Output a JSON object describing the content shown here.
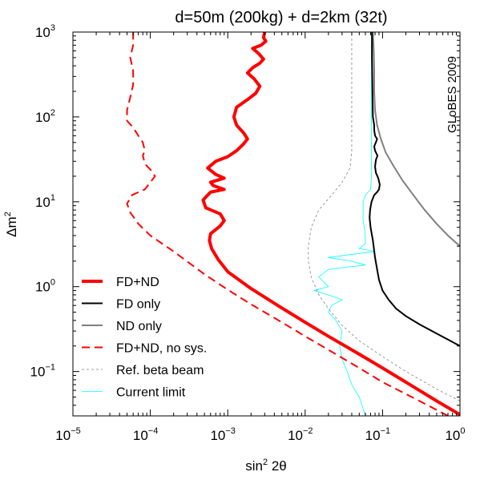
{
  "chart_data": {
    "type": "line",
    "title": "d=50m (200kg) + d=2km (32t)",
    "watermark": "GLoBES 2009",
    "xlabel": "sin² 2θ",
    "ylabel": "Δm²",
    "xscale": "log",
    "yscale": "log",
    "xlim": [
      1e-05,
      1
    ],
    "ylim": [
      0.03,
      1000
    ],
    "grid": false,
    "legend_position": "bottom-left",
    "x_ticks": [
      {
        "base": "10",
        "exp": "−5"
      },
      {
        "base": "10",
        "exp": "−4"
      },
      {
        "base": "10",
        "exp": "−3"
      },
      {
        "base": "10",
        "exp": "−2"
      },
      {
        "base": "10",
        "exp": "−1"
      },
      {
        "base": "10",
        "exp": "0"
      }
    ],
    "y_ticks": [
      {
        "base": "10",
        "exp": "−1"
      },
      {
        "base": "10",
        "exp": "0"
      },
      {
        "base": "10",
        "exp": "1"
      },
      {
        "base": "10",
        "exp": "2"
      },
      {
        "base": "10",
        "exp": "3"
      }
    ],
    "series": [
      {
        "name": "FD+ND",
        "color": "#ff0000",
        "style": "solid",
        "weight": "thick",
        "points": [
          [
            1,
            0.031
          ],
          [
            0.5,
            0.045
          ],
          [
            0.2,
            0.075
          ],
          [
            0.1,
            0.11
          ],
          [
            0.05,
            0.16
          ],
          [
            0.02,
            0.26
          ],
          [
            0.01,
            0.38
          ],
          [
            0.005,
            0.56
          ],
          [
            0.002,
            0.95
          ],
          [
            0.001,
            1.5
          ],
          [
            0.00075,
            2.1
          ],
          [
            0.00062,
            2.8
          ],
          [
            0.00058,
            3.5
          ],
          [
            0.0006,
            4.2
          ],
          [
            0.0008,
            5.2
          ],
          [
            0.0009,
            6.0
          ],
          [
            0.0008,
            7.2
          ],
          [
            0.00052,
            8.5
          ],
          [
            0.00048,
            10.5
          ],
          [
            0.0006,
            13
          ],
          [
            0.0009,
            14
          ],
          [
            0.00065,
            15.5
          ],
          [
            0.0006,
            17
          ],
          [
            0.0009,
            19
          ],
          [
            0.0007,
            21
          ],
          [
            0.00055,
            25
          ],
          [
            0.0007,
            30
          ],
          [
            0.001,
            34
          ],
          [
            0.0013,
            40
          ],
          [
            0.0016,
            48
          ],
          [
            0.0018,
            55
          ],
          [
            0.0016,
            65
          ],
          [
            0.0013,
            80
          ],
          [
            0.0012,
            100
          ],
          [
            0.0013,
            130
          ],
          [
            0.0018,
            160
          ],
          [
            0.0023,
            190
          ],
          [
            0.0026,
            230
          ],
          [
            0.0022,
            280
          ],
          [
            0.0018,
            330
          ],
          [
            0.0021,
            380
          ],
          [
            0.0026,
            430
          ],
          [
            0.0029,
            480
          ],
          [
            0.0025,
            560
          ],
          [
            0.0021,
            640
          ],
          [
            0.0027,
            700
          ],
          [
            0.0031,
            780
          ],
          [
            0.0029,
            860
          ],
          [
            0.003,
            1000
          ]
        ]
      },
      {
        "name": "FD only",
        "color": "#000000",
        "style": "solid",
        "weight": "medium",
        "points": [
          [
            1,
            0.2
          ],
          [
            0.5,
            0.28
          ],
          [
            0.3,
            0.36
          ],
          [
            0.2,
            0.45
          ],
          [
            0.15,
            0.55
          ],
          [
            0.12,
            0.7
          ],
          [
            0.1,
            0.9
          ],
          [
            0.09,
            1.2
          ],
          [
            0.085,
            1.6
          ],
          [
            0.08,
            2.2
          ],
          [
            0.075,
            3.5
          ],
          [
            0.07,
            5
          ],
          [
            0.068,
            6.5
          ],
          [
            0.069,
            8
          ],
          [
            0.072,
            10
          ],
          [
            0.078,
            12
          ],
          [
            0.085,
            13
          ],
          [
            0.09,
            14
          ],
          [
            0.092,
            16
          ],
          [
            0.088,
            19
          ],
          [
            0.082,
            22
          ],
          [
            0.08,
            26
          ],
          [
            0.082,
            31
          ],
          [
            0.086,
            35
          ],
          [
            0.08,
            40
          ],
          [
            0.078,
            45
          ],
          [
            0.082,
            50
          ],
          [
            0.085,
            55
          ],
          [
            0.08,
            60
          ],
          [
            0.078,
            70
          ],
          [
            0.078,
            80
          ],
          [
            0.075,
            100
          ],
          [
            0.074,
            200
          ],
          [
            0.073,
            500
          ],
          [
            0.073,
            1000
          ]
        ]
      },
      {
        "name": "ND only",
        "color": "#808080",
        "style": "solid",
        "weight": "medium",
        "points": [
          [
            1,
            3
          ],
          [
            0.7,
            4
          ],
          [
            0.5,
            5.5
          ],
          [
            0.35,
            8
          ],
          [
            0.25,
            12
          ],
          [
            0.18,
            18
          ],
          [
            0.14,
            26
          ],
          [
            0.11,
            38
          ],
          [
            0.095,
            55
          ],
          [
            0.085,
            80
          ],
          [
            0.08,
            120
          ],
          [
            0.078,
            200
          ],
          [
            0.078,
            350
          ],
          [
            0.077,
            600
          ],
          [
            0.075,
            1000
          ]
        ]
      },
      {
        "name": "FD+ND, no sys.",
        "color": "#ff0000",
        "style": "dashed",
        "weight": "medium",
        "points": [
          [
            0.7,
            0.03
          ],
          [
            0.3,
            0.045
          ],
          [
            0.1,
            0.075
          ],
          [
            0.05,
            0.11
          ],
          [
            0.02,
            0.18
          ],
          [
            0.01,
            0.26
          ],
          [
            0.005,
            0.38
          ],
          [
            0.002,
            0.62
          ],
          [
            0.001,
            0.92
          ],
          [
            0.0005,
            1.4
          ],
          [
            0.0002,
            2.6
          ],
          [
            0.0001,
            4
          ],
          [
            7e-05,
            5.5
          ],
          [
            5.5e-05,
            7.5
          ],
          [
            5e-05,
            9.5
          ],
          [
            5.8e-05,
            12
          ],
          [
            8.5e-05,
            14
          ],
          [
            0.0001,
            17
          ],
          [
            0.000115,
            20
          ],
          [
            0.0001,
            24
          ],
          [
            8.5e-05,
            28
          ],
          [
            8e-05,
            35
          ],
          [
            8.5e-05,
            40
          ],
          [
            8e-05,
            50
          ],
          [
            7e-05,
            60
          ],
          [
            6e-05,
            75
          ],
          [
            5e-05,
            90
          ],
          [
            5e-05,
            120
          ],
          [
            5.5e-05,
            170
          ],
          [
            6e-05,
            240
          ],
          [
            6e-05,
            350
          ],
          [
            5.5e-05,
            500
          ],
          [
            6e-05,
            700
          ],
          [
            6e-05,
            1000
          ]
        ]
      },
      {
        "name": "Ref. beta beam",
        "color": "#808080",
        "style": "dotted",
        "weight": "thin",
        "points": [
          [
            1,
            0.045
          ],
          [
            0.5,
            0.062
          ],
          [
            0.2,
            0.1
          ],
          [
            0.1,
            0.15
          ],
          [
            0.05,
            0.23
          ],
          [
            0.03,
            0.35
          ],
          [
            0.02,
            0.55
          ],
          [
            0.015,
            0.8
          ],
          [
            0.012,
            1.3
          ],
          [
            0.011,
            2
          ],
          [
            0.011,
            3
          ],
          [
            0.012,
            5
          ],
          [
            0.015,
            8
          ],
          [
            0.022,
            12
          ],
          [
            0.03,
            17
          ],
          [
            0.038,
            25
          ],
          [
            0.04,
            40
          ],
          [
            0.04,
            100
          ],
          [
            0.04,
            300
          ],
          [
            0.04,
            1000
          ]
        ]
      },
      {
        "name": "Current limit",
        "color": "#00ffff",
        "style": "solid",
        "weight": "thin",
        "points": [
          [
            0.06,
            0.03
          ],
          [
            0.05,
            0.05
          ],
          [
            0.04,
            0.07
          ],
          [
            0.035,
            0.1
          ],
          [
            0.03,
            0.14
          ],
          [
            0.028,
            0.2
          ],
          [
            0.03,
            0.3
          ],
          [
            0.025,
            0.4
          ],
          [
            0.02,
            0.5
          ],
          [
            0.022,
            0.6
          ],
          [
            0.03,
            0.7
          ],
          [
            0.02,
            0.8
          ],
          [
            0.013,
            0.9
          ],
          [
            0.02,
            1.0
          ],
          [
            0.015,
            1.3
          ],
          [
            0.02,
            1.6
          ],
          [
            0.06,
            1.8
          ],
          [
            0.04,
            2.0
          ],
          [
            0.02,
            2.2
          ],
          [
            0.04,
            2.4
          ],
          [
            0.08,
            2.6
          ],
          [
            0.05,
            2.8
          ],
          [
            0.06,
            3.2
          ],
          [
            0.06,
            4
          ],
          [
            0.058,
            5
          ],
          [
            0.056,
            6
          ],
          [
            0.056,
            8
          ],
          [
            0.056,
            10
          ],
          [
            0.06,
            12
          ],
          [
            0.07,
            14
          ],
          [
            0.072,
            20
          ],
          [
            0.072,
            50
          ],
          [
            0.072,
            200
          ],
          [
            0.072,
            1000
          ]
        ]
      }
    ]
  }
}
